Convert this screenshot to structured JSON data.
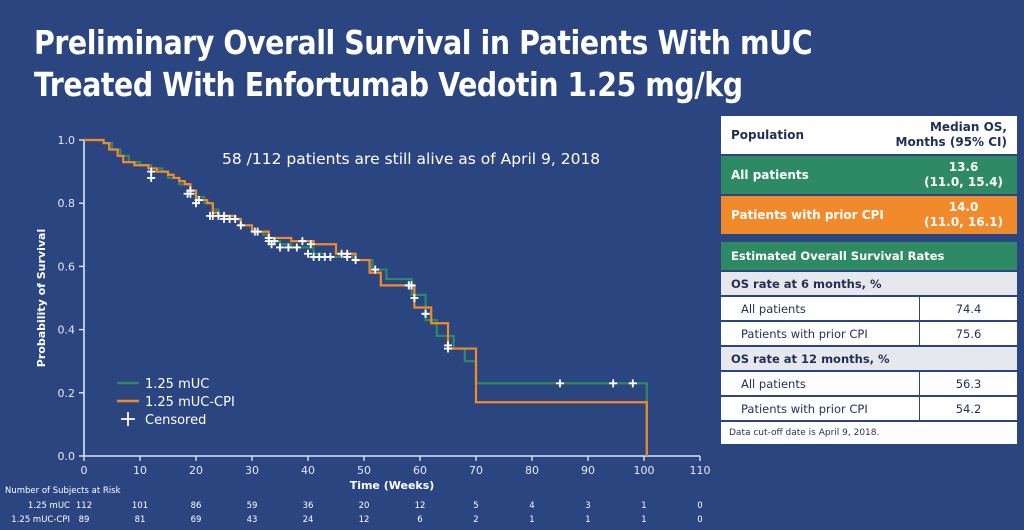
{
  "slide": {
    "title_line1": "Preliminary Overall Survival in Patients With mUC",
    "title_line2": "Treated With Enfortumab Vedotin 1.25 mg/kg"
  },
  "colors": {
    "background": "#2b4580",
    "mUC": "#2e8a64",
    "mUC_CPI": "#f08a2b",
    "censor": "#ffffff",
    "axis": "#dfe4ee"
  },
  "chart_data": {
    "type": "line",
    "subtype": "kaplan-meier step",
    "title": "",
    "annotation": "58 /112 patients are still alive as of April 9, 2018",
    "xlabel": "Time (Weeks)",
    "ylabel": "Probability of Survival",
    "xlim": [
      0,
      110
    ],
    "ylim": [
      0,
      1.0
    ],
    "x_ticks": [
      0,
      10,
      20,
      30,
      40,
      50,
      60,
      70,
      80,
      90,
      100,
      110
    ],
    "y_ticks": [
      "0.0",
      "0.2",
      "0.4",
      "0.6",
      "0.8",
      "1.0"
    ],
    "grid": false,
    "legend_position": "bottom-left",
    "legend": [
      {
        "label": "1.25 mUC",
        "kind": "line",
        "color": "#2e8a64"
      },
      {
        "label": "1.25 mUC-CPI",
        "kind": "line",
        "color": "#f08a2b"
      },
      {
        "label": "Censored",
        "kind": "plus",
        "color": "#ffffff"
      }
    ],
    "series": [
      {
        "name": "1.25 mUC",
        "color": "#2e8a64",
        "steps": [
          [
            0,
            1.0
          ],
          [
            3.5,
            0.99
          ],
          [
            5,
            0.97
          ],
          [
            6.5,
            0.95
          ],
          [
            8,
            0.93
          ],
          [
            10,
            0.92
          ],
          [
            12,
            0.91
          ],
          [
            14,
            0.9
          ],
          [
            15,
            0.88
          ],
          [
            17,
            0.86
          ],
          [
            19,
            0.84
          ],
          [
            20,
            0.82
          ],
          [
            21.5,
            0.8
          ],
          [
            23,
            0.78
          ],
          [
            24,
            0.76
          ],
          [
            26,
            0.75
          ],
          [
            28,
            0.73
          ],
          [
            30,
            0.71
          ],
          [
            32,
            0.7
          ],
          [
            33,
            0.68
          ],
          [
            35,
            0.67
          ],
          [
            37,
            0.66
          ],
          [
            41,
            0.64
          ],
          [
            43,
            0.63
          ],
          [
            45.5,
            0.64
          ],
          [
            48,
            0.62
          ],
          [
            51.5,
            0.59
          ],
          [
            54,
            0.56
          ],
          [
            58.5,
            0.51
          ],
          [
            61,
            0.43
          ],
          [
            63,
            0.38
          ],
          [
            66,
            0.34
          ],
          [
            68,
            0.3
          ],
          [
            70,
            0.23
          ],
          [
            100.5,
            0.23
          ],
          [
            100.5,
            0.17
          ],
          [
            100.5,
            0.0
          ]
        ],
        "censored": [
          [
            12,
            0.88
          ],
          [
            19,
            0.84
          ],
          [
            20,
            0.8
          ],
          [
            22.5,
            0.76
          ],
          [
            24,
            0.76
          ],
          [
            25,
            0.75
          ],
          [
            26,
            0.75
          ],
          [
            28,
            0.73
          ],
          [
            30.5,
            0.71
          ],
          [
            33,
            0.68
          ],
          [
            33.5,
            0.67
          ],
          [
            35,
            0.66
          ],
          [
            36.5,
            0.66
          ],
          [
            38,
            0.66
          ],
          [
            40,
            0.64
          ],
          [
            41,
            0.63
          ],
          [
            42,
            0.63
          ],
          [
            43,
            0.63
          ],
          [
            44,
            0.63
          ],
          [
            47,
            0.63
          ],
          [
            48.5,
            0.62
          ],
          [
            52,
            0.59
          ],
          [
            58,
            0.54
          ],
          [
            58.5,
            0.54
          ],
          [
            59,
            0.5
          ],
          [
            61,
            0.45
          ],
          [
            65,
            0.35
          ],
          [
            85,
            0.23
          ],
          [
            94.5,
            0.23
          ],
          [
            98,
            0.23
          ]
        ]
      },
      {
        "name": "1.25 mUC-CPI",
        "color": "#f08a2b",
        "steps": [
          [
            0,
            1.0
          ],
          [
            3.5,
            0.99
          ],
          [
            4.5,
            0.97
          ],
          [
            6,
            0.95
          ],
          [
            7,
            0.93
          ],
          [
            9,
            0.92
          ],
          [
            11.5,
            0.91
          ],
          [
            13,
            0.9
          ],
          [
            15,
            0.89
          ],
          [
            16,
            0.88
          ],
          [
            17,
            0.87
          ],
          [
            18,
            0.86
          ],
          [
            19,
            0.84
          ],
          [
            20,
            0.81
          ],
          [
            22,
            0.8
          ],
          [
            23,
            0.77
          ],
          [
            24,
            0.76
          ],
          [
            27,
            0.75
          ],
          [
            28,
            0.73
          ],
          [
            30,
            0.71
          ],
          [
            33,
            0.69
          ],
          [
            37,
            0.68
          ],
          [
            41,
            0.67
          ],
          [
            45,
            0.64
          ],
          [
            48.5,
            0.62
          ],
          [
            51,
            0.58
          ],
          [
            53,
            0.54
          ],
          [
            58,
            0.54
          ],
          [
            59,
            0.47
          ],
          [
            62,
            0.42
          ],
          [
            65,
            0.34
          ],
          [
            70,
            0.34
          ],
          [
            70,
            0.17
          ],
          [
            100.5,
            0.17
          ],
          [
            100.5,
            0.0
          ]
        ],
        "censored": [
          [
            12,
            0.9
          ],
          [
            18.5,
            0.83
          ],
          [
            19,
            0.83
          ],
          [
            20.5,
            0.81
          ],
          [
            23,
            0.76
          ],
          [
            25,
            0.76
          ],
          [
            27,
            0.75
          ],
          [
            31,
            0.71
          ],
          [
            33,
            0.69
          ],
          [
            34,
            0.68
          ],
          [
            39,
            0.68
          ],
          [
            40.5,
            0.67
          ],
          [
            46,
            0.64
          ],
          [
            47,
            0.64
          ],
          [
            58,
            0.54
          ],
          [
            58.5,
            0.54
          ],
          [
            61,
            0.45
          ],
          [
            65,
            0.34
          ]
        ]
      }
    ],
    "risk_table": {
      "title": "Number of Subjects at Risk",
      "times": [
        0,
        10,
        20,
        30,
        40,
        50,
        60,
        70,
        80,
        90,
        100,
        110
      ],
      "rows": [
        {
          "label": "1.25 mUC",
          "values": [
            112,
            101,
            86,
            59,
            36,
            20,
            12,
            5,
            4,
            3,
            1,
            0
          ]
        },
        {
          "label": "1.25 mUC-CPI",
          "values": [
            89,
            81,
            69,
            43,
            24,
            12,
            6,
            2,
            1,
            1,
            1,
            0
          ]
        }
      ]
    }
  },
  "table": {
    "header": {
      "population": "Population",
      "median_line1": "Median OS,",
      "median_line2": "Months (95% CI)"
    },
    "median_rows": [
      {
        "label": "All patients",
        "value": "13.6",
        "ci": "(11.0, 15.4)"
      },
      {
        "label": "Patients with prior CPI",
        "value": "14.0",
        "ci": "(11.0, 16.1)"
      }
    ],
    "rates_title": "Estimated Overall Survival Rates",
    "rate_sections": [
      {
        "title": "OS rate at 6 months, %",
        "rows": [
          {
            "label": "All patients",
            "value": "74.4"
          },
          {
            "label": "Patients with prior CPI",
            "value": "75.6"
          }
        ]
      },
      {
        "title": "OS rate at 12 months, %",
        "rows": [
          {
            "label": "All patients",
            "value": "56.3"
          },
          {
            "label": "Patients with prior CPI",
            "value": "54.2"
          }
        ]
      }
    ],
    "note": "Data cut-off date is April 9, 2018."
  }
}
